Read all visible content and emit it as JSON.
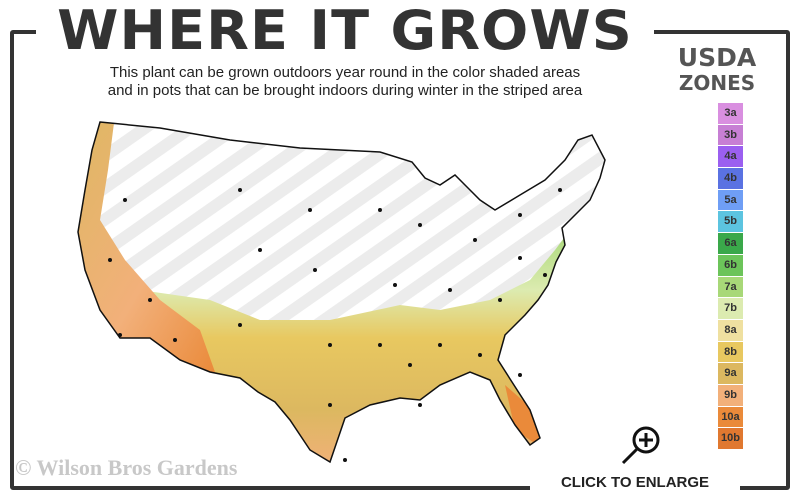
{
  "header": {
    "title": "WHERE IT GROWS",
    "subtitle_line1": "This plant can be grown outdoors year round in the color shaded areas",
    "subtitle_line2": "and in pots that can be brought indoors during winter in the striped area"
  },
  "legend": {
    "title_line1": "USDA",
    "title_line2": "ZONES",
    "zones": [
      {
        "label": "3a",
        "color": "#d98fe0"
      },
      {
        "label": "3b",
        "color": "#c77fd4"
      },
      {
        "label": "4a",
        "color": "#9b5ff0"
      },
      {
        "label": "4b",
        "color": "#5a72e2"
      },
      {
        "label": "5a",
        "color": "#6f9ef5"
      },
      {
        "label": "5b",
        "color": "#5cc4e0"
      },
      {
        "label": "6a",
        "color": "#3aa84a"
      },
      {
        "label": "6b",
        "color": "#6cc45a"
      },
      {
        "label": "7a",
        "color": "#a8d878"
      },
      {
        "label": "7b",
        "color": "#dcebb0"
      },
      {
        "label": "8a",
        "color": "#efe0a0"
      },
      {
        "label": "8b",
        "color": "#e8c860"
      },
      {
        "label": "9a",
        "color": "#dcb860"
      },
      {
        "label": "9b",
        "color": "#f2b07a"
      },
      {
        "label": "10a",
        "color": "#ea8a3a"
      },
      {
        "label": "10b",
        "color": "#e07830"
      }
    ]
  },
  "map": {
    "grown_outdoors_zones": [
      "7a",
      "7b",
      "8a",
      "8b",
      "9a",
      "9b",
      "10a",
      "10b"
    ],
    "striped_meaning": "pots brought indoors during winter"
  },
  "watermark": "© Wilson Bros Gardens",
  "enlarge": {
    "label": "CLICK TO ENLARGE",
    "icon": "zoom-in-magnifier-icon"
  }
}
